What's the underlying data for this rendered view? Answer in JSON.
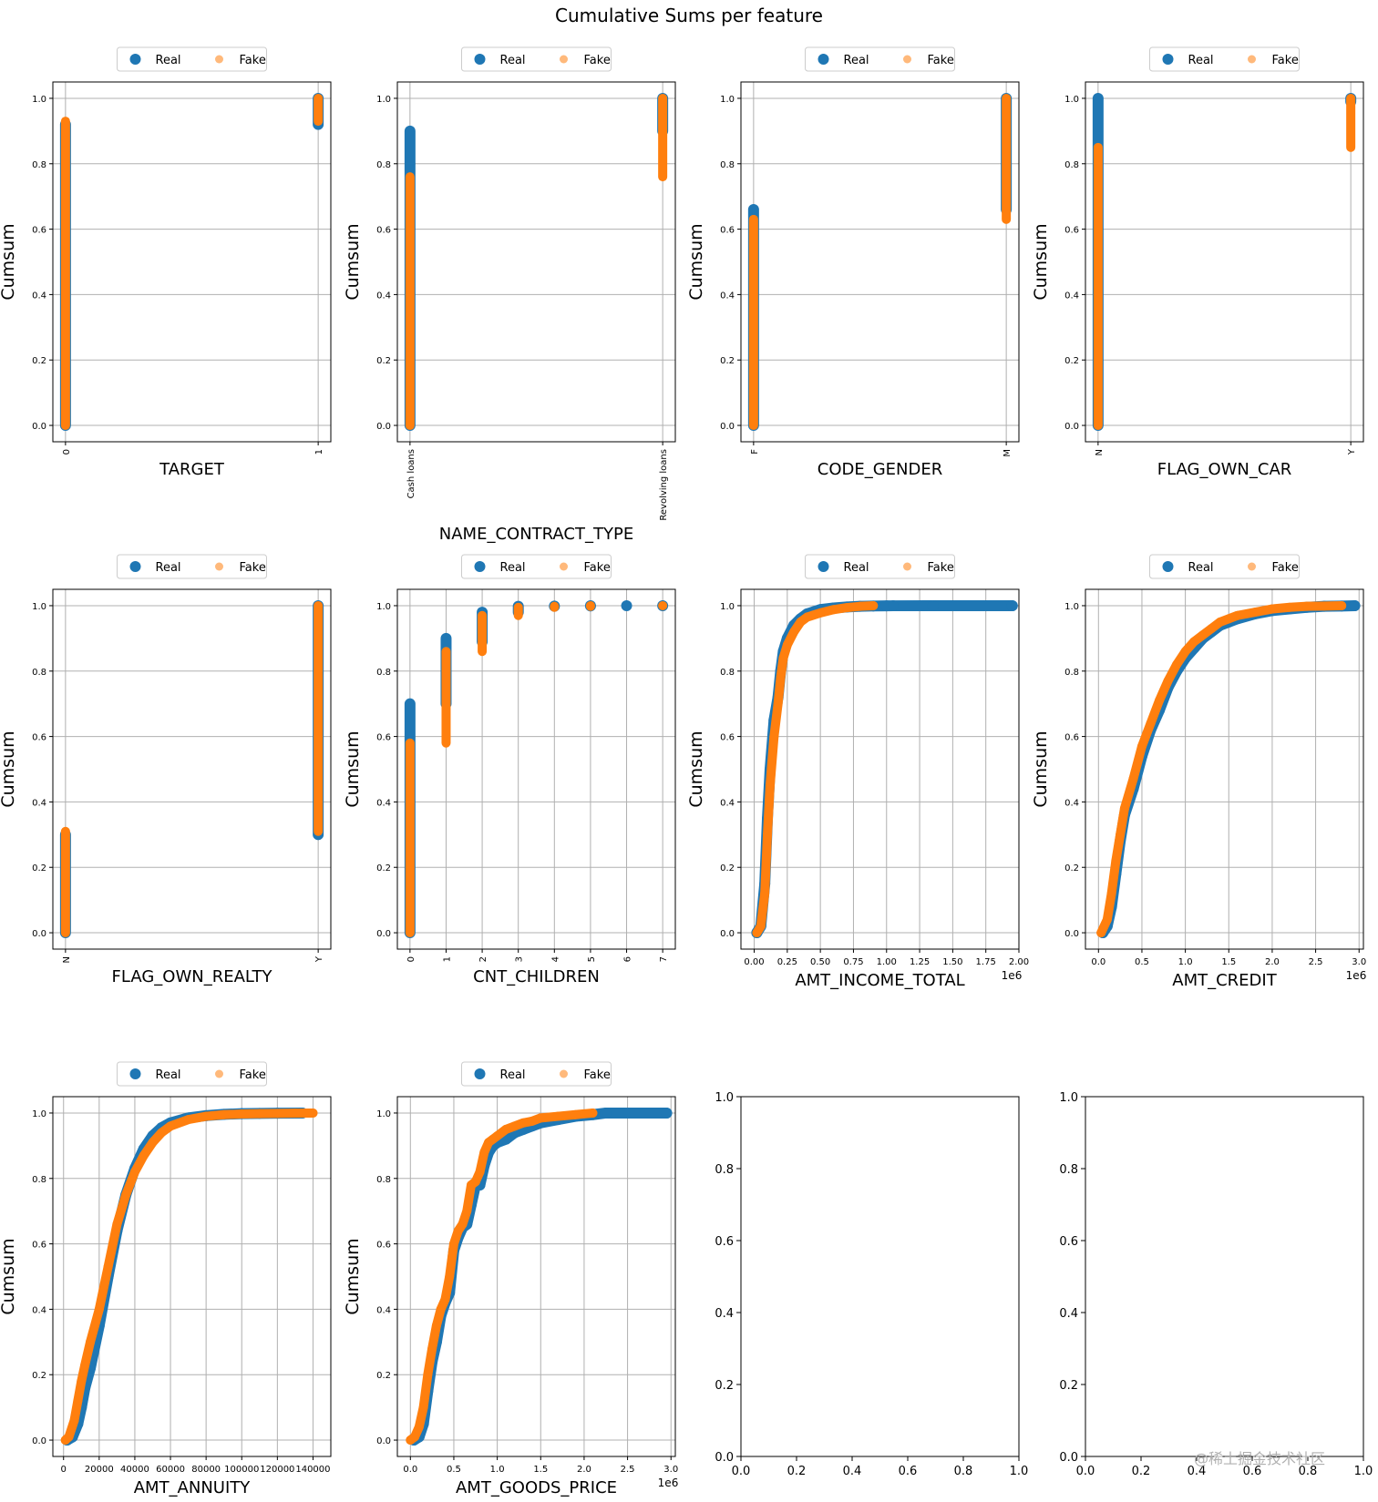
{
  "suptitle": "Cumulative Sums per feature",
  "legend": {
    "real": "Real",
    "fake": "Fake"
  },
  "colors": {
    "real": "#1f77b4",
    "fake": "#ff7f0e",
    "grid": "#b0b0b0"
  },
  "watermark": "@稀土掘金技术社区",
  "chart_data": [
    {
      "feature": "TARGET",
      "type": "scatter",
      "ylabel": "Cumsum",
      "xlabel": "TARGET",
      "x_tick_rotation": 90,
      "xticks": [
        "0",
        "1"
      ],
      "xlim": [
        -0.05,
        1.05
      ],
      "ylim": [
        -0.05,
        1.05
      ],
      "yticks": [
        0,
        0.2,
        0.4,
        0.6,
        0.8,
        1.0
      ],
      "real": {
        "x": [
          0,
          1
        ],
        "low": [
          0.0,
          0.92
        ],
        "high": [
          0.92,
          1.0
        ]
      },
      "fake": {
        "x": [
          0,
          1
        ],
        "low": [
          0.0,
          0.93
        ],
        "high": [
          0.93,
          1.0
        ]
      }
    },
    {
      "feature": "NAME_CONTRACT_TYPE",
      "type": "scatter",
      "ylabel": "Cumsum",
      "xlabel": "NAME_CONTRACT_TYPE",
      "x_tick_rotation": 90,
      "xticks": [
        "Cash loans",
        "Revolving loans"
      ],
      "xlim": [
        -0.05,
        1.05
      ],
      "ylim": [
        -0.05,
        1.05
      ],
      "yticks": [
        0,
        0.2,
        0.4,
        0.6,
        0.8,
        1.0
      ],
      "real": {
        "x": [
          0,
          1
        ],
        "low": [
          0.0,
          0.9
        ],
        "high": [
          0.9,
          1.0
        ]
      },
      "fake": {
        "x": [
          0,
          1
        ],
        "low": [
          0.0,
          0.76
        ],
        "high": [
          0.76,
          1.0
        ]
      }
    },
    {
      "feature": "CODE_GENDER",
      "type": "scatter",
      "ylabel": "Cumsum",
      "xlabel": "CODE_GENDER",
      "x_tick_rotation": 90,
      "xticks": [
        "F",
        "M"
      ],
      "xlim": [
        -0.05,
        1.05
      ],
      "ylim": [
        -0.05,
        1.05
      ],
      "yticks": [
        0,
        0.2,
        0.4,
        0.6,
        0.8,
        1.0
      ],
      "real": {
        "x": [
          0,
          1
        ],
        "low": [
          0.0,
          0.66
        ],
        "high": [
          0.66,
          1.0
        ]
      },
      "fake": {
        "x": [
          0,
          1
        ],
        "low": [
          0.0,
          0.63
        ],
        "high": [
          0.63,
          1.0
        ]
      }
    },
    {
      "feature": "FLAG_OWN_CAR",
      "type": "scatter",
      "ylabel": "Cumsum",
      "xlabel": "FLAG_OWN_CAR",
      "x_tick_rotation": 90,
      "xticks": [
        "N",
        "Y"
      ],
      "xlim": [
        -0.05,
        1.05
      ],
      "ylim": [
        -0.05,
        1.05
      ],
      "yticks": [
        0,
        0.2,
        0.4,
        0.6,
        0.8,
        1.0
      ],
      "real": {
        "x": [
          0,
          1
        ],
        "low": [
          0.0,
          0.99
        ],
        "high": [
          1.0,
          1.0
        ]
      },
      "fake": {
        "x": [
          0,
          1
        ],
        "low": [
          0.0,
          0.85
        ],
        "high": [
          0.85,
          1.0
        ]
      }
    },
    {
      "feature": "FLAG_OWN_REALTY",
      "type": "scatter",
      "ylabel": "Cumsum",
      "xlabel": "FLAG_OWN_REALTY",
      "x_tick_rotation": 90,
      "xticks": [
        "N",
        "Y"
      ],
      "xlim": [
        -0.05,
        1.05
      ],
      "ylim": [
        -0.05,
        1.05
      ],
      "yticks": [
        0,
        0.2,
        0.4,
        0.6,
        0.8,
        1.0
      ],
      "real": {
        "x": [
          0,
          1
        ],
        "low": [
          0.0,
          0.3
        ],
        "high": [
          0.3,
          1.0
        ]
      },
      "fake": {
        "x": [
          0,
          1
        ],
        "low": [
          0.0,
          0.31
        ],
        "high": [
          0.31,
          1.0
        ]
      }
    },
    {
      "feature": "CNT_CHILDREN",
      "type": "scatter",
      "ylabel": "Cumsum",
      "xlabel": "CNT_CHILDREN",
      "x_tick_rotation": 90,
      "xticks": [
        "0",
        "1",
        "2",
        "3",
        "4",
        "5",
        "6",
        "7"
      ],
      "xlim": [
        -0.35,
        7.35
      ],
      "ylim": [
        -0.05,
        1.05
      ],
      "yticks": [
        0,
        0.2,
        0.4,
        0.6,
        0.8,
        1.0
      ],
      "real": {
        "x": [
          0,
          1,
          2,
          3,
          4,
          5,
          6,
          7
        ],
        "low": [
          0.0,
          0.7,
          0.89,
          0.98,
          0.998,
          0.999,
          1.0,
          1.0
        ],
        "high": [
          0.7,
          0.9,
          0.98,
          0.998,
          0.999,
          1.0,
          1.0,
          1.0
        ]
      },
      "fake": {
        "x": [
          0,
          1,
          2,
          3,
          4,
          5,
          7
        ],
        "low": [
          0.0,
          0.58,
          0.86,
          0.97,
          0.995,
          0.998,
          1.0
        ],
        "high": [
          0.58,
          0.86,
          0.97,
          0.995,
          0.998,
          1.0,
          1.0
        ]
      }
    },
    {
      "feature": "AMT_INCOME_TOTAL",
      "type": "scatter",
      "ylabel": "Cumsum",
      "xlabel": "AMT_INCOME_TOTAL",
      "x_offset_label": "1e6",
      "xticks": [
        "0.00",
        "0.25",
        "0.50",
        "0.75",
        "1.00",
        "1.25",
        "1.50",
        "1.75",
        "2.00"
      ],
      "xtick_values": [
        0,
        0.25,
        0.5,
        0.75,
        1.0,
        1.25,
        1.5,
        1.75,
        2.0
      ],
      "xlim": [
        -0.1,
        2.0
      ],
      "ylim": [
        -0.05,
        1.05
      ],
      "yticks": [
        0,
        0.2,
        0.4,
        0.6,
        0.8,
        1.0
      ],
      "real": {
        "x": [
          0.02,
          0.05,
          0.08,
          0.1,
          0.12,
          0.15,
          0.18,
          0.2,
          0.22,
          0.25,
          0.3,
          0.35,
          0.4,
          0.5,
          0.6,
          0.7,
          0.8,
          0.9,
          1.0,
          1.05,
          1.35,
          1.95
        ],
        "y": [
          0.0,
          0.02,
          0.15,
          0.35,
          0.5,
          0.65,
          0.72,
          0.8,
          0.86,
          0.9,
          0.94,
          0.96,
          0.975,
          0.988,
          0.993,
          0.996,
          0.998,
          0.999,
          0.9995,
          0.9997,
          0.9999,
          1.0
        ]
      },
      "fake": {
        "x": [
          0.02,
          0.05,
          0.08,
          0.1,
          0.12,
          0.15,
          0.18,
          0.2,
          0.22,
          0.25,
          0.3,
          0.35,
          0.4,
          0.5,
          0.6,
          0.7,
          0.8,
          0.9
        ],
        "y": [
          0.0,
          0.02,
          0.12,
          0.3,
          0.45,
          0.6,
          0.7,
          0.78,
          0.84,
          0.88,
          0.92,
          0.95,
          0.965,
          0.978,
          0.988,
          0.994,
          0.998,
          1.0
        ]
      }
    },
    {
      "feature": "AMT_CREDIT",
      "type": "scatter",
      "ylabel": "Cumsum",
      "xlabel": "AMT_CREDIT",
      "x_offset_label": "1e6",
      "xticks": [
        "0.0",
        "0.5",
        "1.0",
        "1.5",
        "2.0",
        "2.5",
        "3.0"
      ],
      "xtick_values": [
        0,
        0.5,
        1.0,
        1.5,
        2.0,
        2.5,
        3.0
      ],
      "xlim": [
        -0.15,
        3.05
      ],
      "ylim": [
        -0.05,
        1.05
      ],
      "yticks": [
        0,
        0.2,
        0.4,
        0.6,
        0.8,
        1.0
      ],
      "real": {
        "x": [
          0.05,
          0.1,
          0.15,
          0.2,
          0.25,
          0.3,
          0.4,
          0.5,
          0.6,
          0.7,
          0.8,
          0.9,
          1.0,
          1.1,
          1.2,
          1.3,
          1.4,
          1.5,
          1.6,
          1.8,
          2.0,
          2.2,
          2.4,
          2.6,
          2.8,
          2.95
        ],
        "y": [
          0.0,
          0.02,
          0.08,
          0.18,
          0.28,
          0.36,
          0.44,
          0.54,
          0.62,
          0.68,
          0.75,
          0.8,
          0.84,
          0.87,
          0.9,
          0.92,
          0.94,
          0.95,
          0.96,
          0.975,
          0.985,
          0.99,
          0.995,
          0.998,
          0.999,
          1.0
        ]
      },
      "fake": {
        "x": [
          0.03,
          0.1,
          0.15,
          0.2,
          0.25,
          0.3,
          0.4,
          0.5,
          0.6,
          0.7,
          0.8,
          0.9,
          1.0,
          1.1,
          1.2,
          1.3,
          1.4,
          1.5,
          1.6,
          1.8,
          2.0,
          2.2,
          2.4,
          2.6,
          2.8
        ],
        "y": [
          0.0,
          0.04,
          0.12,
          0.22,
          0.3,
          0.38,
          0.47,
          0.57,
          0.64,
          0.71,
          0.77,
          0.82,
          0.86,
          0.89,
          0.91,
          0.93,
          0.95,
          0.96,
          0.97,
          0.98,
          0.99,
          0.995,
          0.998,
          0.999,
          1.0
        ]
      }
    },
    {
      "feature": "AMT_ANNUITY",
      "type": "scatter",
      "ylabel": "Cumsum",
      "xlabel": "AMT_ANNUITY",
      "xticks": [
        "0",
        "20000",
        "40000",
        "60000",
        "80000",
        "100000",
        "120000",
        "140000"
      ],
      "xtick_values": [
        0,
        20000,
        40000,
        60000,
        80000,
        100000,
        120000,
        140000
      ],
      "xlim": [
        -6000,
        150000
      ],
      "ylim": [
        -0.05,
        1.05
      ],
      "yticks": [
        0,
        0.2,
        0.4,
        0.6,
        0.8,
        1.0
      ],
      "real": {
        "x": [
          2000,
          5000,
          8000,
          10000,
          12000,
          15000,
          20000,
          25000,
          30000,
          35000,
          40000,
          45000,
          50000,
          55000,
          60000,
          70000,
          80000,
          90000,
          100000,
          110000,
          120000,
          134000
        ],
        "y": [
          0.0,
          0.01,
          0.05,
          0.1,
          0.16,
          0.22,
          0.35,
          0.5,
          0.64,
          0.75,
          0.83,
          0.89,
          0.93,
          0.955,
          0.97,
          0.985,
          0.992,
          0.996,
          0.998,
          0.999,
          0.9995,
          1.0
        ]
      },
      "fake": {
        "x": [
          1000,
          3000,
          6000,
          8000,
          10000,
          12000,
          15000,
          20000,
          25000,
          30000,
          35000,
          40000,
          45000,
          50000,
          55000,
          60000,
          70000,
          80000,
          90000,
          100000,
          110000,
          120000,
          130000,
          140000
        ],
        "y": [
          0.0,
          0.01,
          0.06,
          0.12,
          0.18,
          0.23,
          0.3,
          0.4,
          0.53,
          0.66,
          0.75,
          0.82,
          0.87,
          0.91,
          0.94,
          0.96,
          0.98,
          0.99,
          0.995,
          0.997,
          0.998,
          0.999,
          0.9995,
          1.0
        ]
      }
    },
    {
      "feature": "AMT_GOODS_PRICE",
      "type": "scatter",
      "ylabel": "Cumsum",
      "xlabel": "AMT_GOODS_PRICE",
      "x_offset_label": "1e6",
      "xticks": [
        "0.0",
        "0.5",
        "1.0",
        "1.5",
        "2.0",
        "2.5",
        "3.0"
      ],
      "xtick_values": [
        0,
        0.5,
        1.0,
        1.5,
        2.0,
        2.5,
        3.0
      ],
      "xlim": [
        -0.15,
        3.05
      ],
      "ylim": [
        -0.05,
        1.05
      ],
      "yticks": [
        0,
        0.2,
        0.4,
        0.6,
        0.8,
        1.0
      ],
      "real": {
        "x": [
          0.04,
          0.1,
          0.15,
          0.2,
          0.25,
          0.3,
          0.35,
          0.4,
          0.45,
          0.5,
          0.55,
          0.6,
          0.65,
          0.7,
          0.75,
          0.8,
          0.85,
          0.9,
          0.95,
          1.0,
          1.1,
          1.2,
          1.3,
          1.4,
          1.5,
          1.7,
          1.9,
          2.1,
          2.25,
          2.95
        ],
        "y": [
          0.0,
          0.01,
          0.05,
          0.15,
          0.24,
          0.3,
          0.38,
          0.42,
          0.45,
          0.58,
          0.62,
          0.65,
          0.66,
          0.72,
          0.78,
          0.78,
          0.84,
          0.88,
          0.9,
          0.91,
          0.92,
          0.94,
          0.95,
          0.96,
          0.97,
          0.98,
          0.99,
          0.995,
          1.0,
          1.0
        ]
      },
      "fake": {
        "x": [
          0.0,
          0.05,
          0.1,
          0.15,
          0.2,
          0.25,
          0.3,
          0.35,
          0.4,
          0.45,
          0.5,
          0.55,
          0.6,
          0.65,
          0.7,
          0.75,
          0.8,
          0.85,
          0.9,
          0.95,
          1.0,
          1.1,
          1.2,
          1.3,
          1.4,
          1.5,
          1.7,
          1.9,
          2.1
        ],
        "y": [
          0.0,
          0.01,
          0.04,
          0.1,
          0.2,
          0.28,
          0.35,
          0.4,
          0.43,
          0.5,
          0.6,
          0.64,
          0.66,
          0.7,
          0.78,
          0.79,
          0.82,
          0.88,
          0.91,
          0.92,
          0.93,
          0.95,
          0.96,
          0.97,
          0.975,
          0.985,
          0.99,
          0.995,
          1.0
        ]
      }
    },
    {
      "feature": "",
      "type": "empty",
      "xticks": [
        "0.0",
        "0.2",
        "0.4",
        "0.6",
        "0.8",
        "1.0"
      ],
      "yticks": [
        "0.0",
        "0.2",
        "0.4",
        "0.6",
        "0.8",
        "1.0"
      ],
      "xlim": [
        0,
        1
      ],
      "ylim": [
        0,
        1
      ]
    },
    {
      "feature": "",
      "type": "empty",
      "xticks": [
        "0.0",
        "0.2",
        "0.4",
        "0.6",
        "0.8",
        "1.0"
      ],
      "yticks": [
        "0.0",
        "0.2",
        "0.4",
        "0.6",
        "0.8",
        "1.0"
      ],
      "xlim": [
        0,
        1
      ],
      "ylim": [
        0,
        1
      ]
    }
  ]
}
